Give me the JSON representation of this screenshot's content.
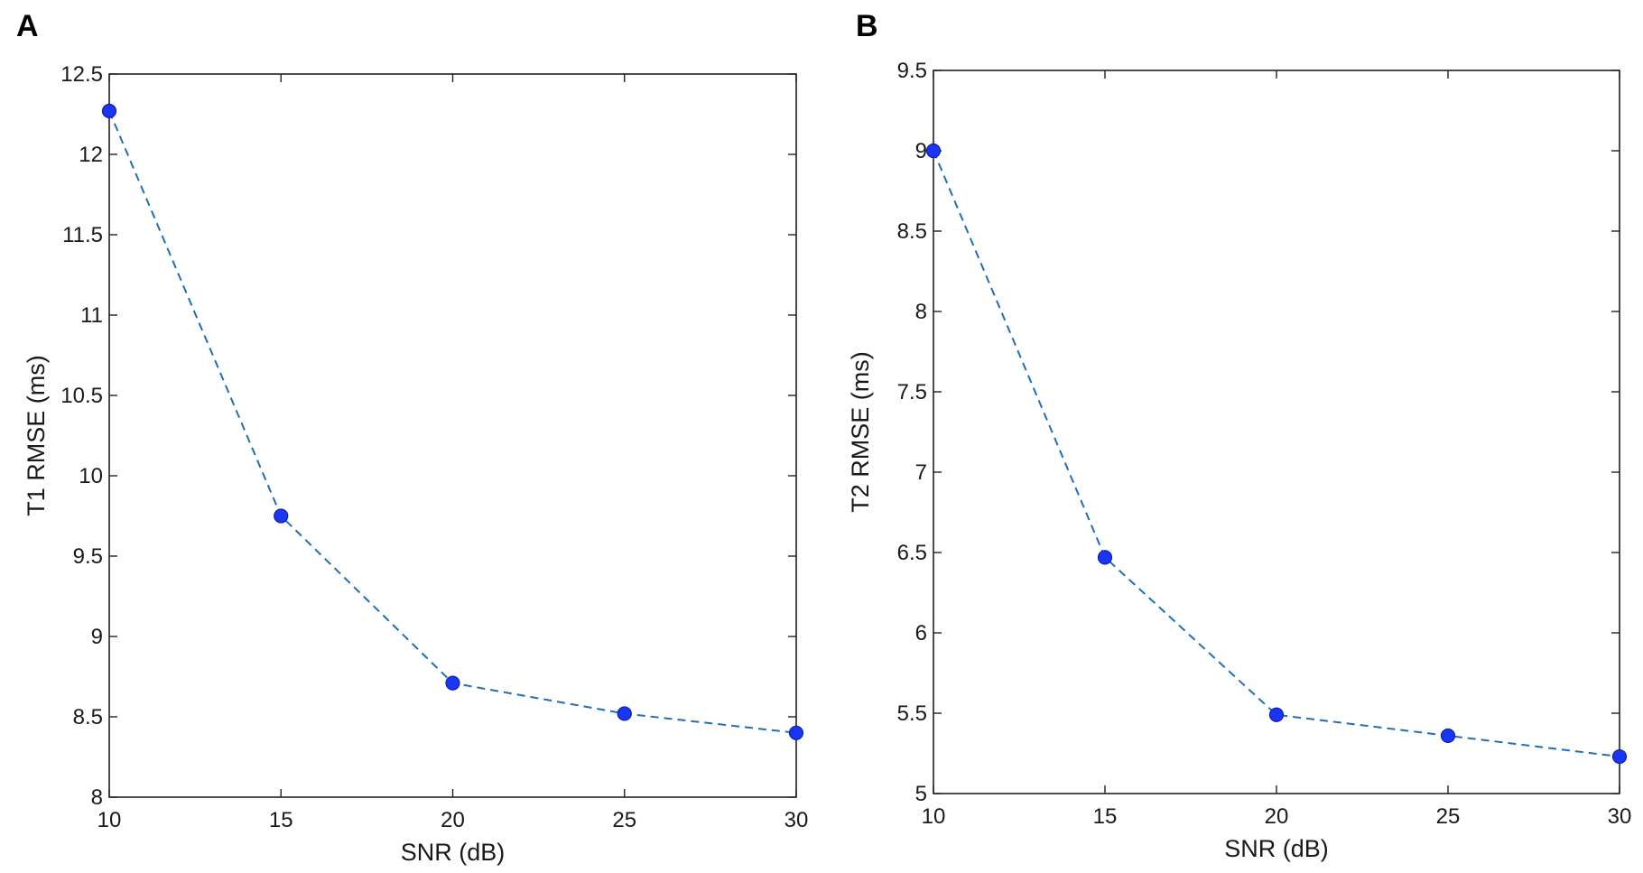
{
  "panels": {
    "a": {
      "letter": "A"
    },
    "b": {
      "letter": "B"
    }
  },
  "colors": {
    "line": "#1f6fb8",
    "marker": "#1a36f2",
    "marker_edge": "#0a1fb0",
    "axes": "#222222"
  },
  "chart_data": [
    {
      "type": "line",
      "panel": "A",
      "title": "",
      "xlabel": "SNR (dB)",
      "ylabel": "T1 RMSE (ms)",
      "x": [
        10,
        15,
        20,
        25,
        30
      ],
      "series": [
        {
          "values": [
            12.27,
            9.75,
            8.71,
            8.52,
            8.4
          ]
        }
      ],
      "xlim": [
        10,
        30
      ],
      "ylim": [
        8,
        12.5
      ],
      "xticks": [
        10,
        15,
        20,
        25,
        30
      ],
      "yticks": [
        8,
        8.5,
        9,
        9.5,
        10,
        10.5,
        11,
        11.5,
        12,
        12.5
      ],
      "line_style": "dashed",
      "marker": "circle",
      "grid": false,
      "legend": "none"
    },
    {
      "type": "line",
      "panel": "B",
      "title": "",
      "xlabel": "SNR (dB)",
      "ylabel": "T2 RMSE (ms)",
      "x": [
        10,
        15,
        20,
        25,
        30
      ],
      "series": [
        {
          "values": [
            9.0,
            6.47,
            5.49,
            5.36,
            5.23
          ]
        }
      ],
      "xlim": [
        10,
        30
      ],
      "ylim": [
        5,
        9.5
      ],
      "xticks": [
        10,
        15,
        20,
        25,
        30
      ],
      "yticks": [
        5,
        5.5,
        6,
        6.5,
        7,
        7.5,
        8,
        8.5,
        9,
        9.5
      ],
      "line_style": "dashed",
      "marker": "circle",
      "grid": false,
      "legend": "none"
    }
  ]
}
